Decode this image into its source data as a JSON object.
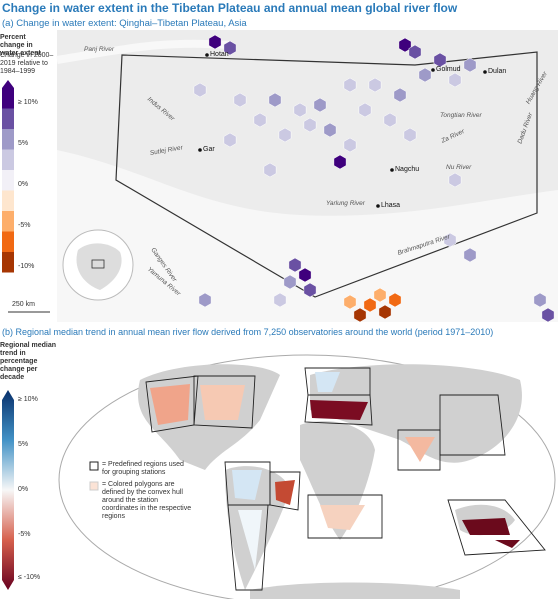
{
  "title": "Change in water extent in the Tibetan Plateau and annual mean global river flow",
  "panel_a": {
    "subtitle": "(a) Change in water extent: Qinghai–Tibetan Plateau, Asia",
    "legend": {
      "title": "Percent change in water extent",
      "subtitle": "Change in 2000–2019 relative to 1984–1999",
      "labels": [
        "≥ 10%",
        "5%",
        "0%",
        "-5%",
        "-10%"
      ]
    },
    "cities": [
      "Hotan",
      "Golmud",
      "Dulan",
      "Gar",
      "Nagchu",
      "Lhasa"
    ],
    "rivers": [
      "Panj River",
      "Indus River",
      "Sutlej River",
      "Ganges River",
      "Yamuna River",
      "Yarlung River",
      "Brahmaputra River",
      "Tongtian River",
      "Za River",
      "Nu River",
      "Huang River",
      "Dadu River"
    ],
    "scale": "250 km"
  },
  "panel_b": {
    "subtitle": "(b) Regional median trend in annual mean river flow derived from 7,250 observatories around the world (period 1971–2010)",
    "legend": {
      "title": "Regional median trend in percentage change per decade",
      "labels": [
        "≥ 10%",
        "5%",
        "0%",
        "-5%",
        "≤ -10%"
      ]
    },
    "notes": [
      "= Predefined regions used for grouping stations",
      "= Colored polygons are defined by the convex hull around the station coordinates in the respective regions"
    ]
  }
}
